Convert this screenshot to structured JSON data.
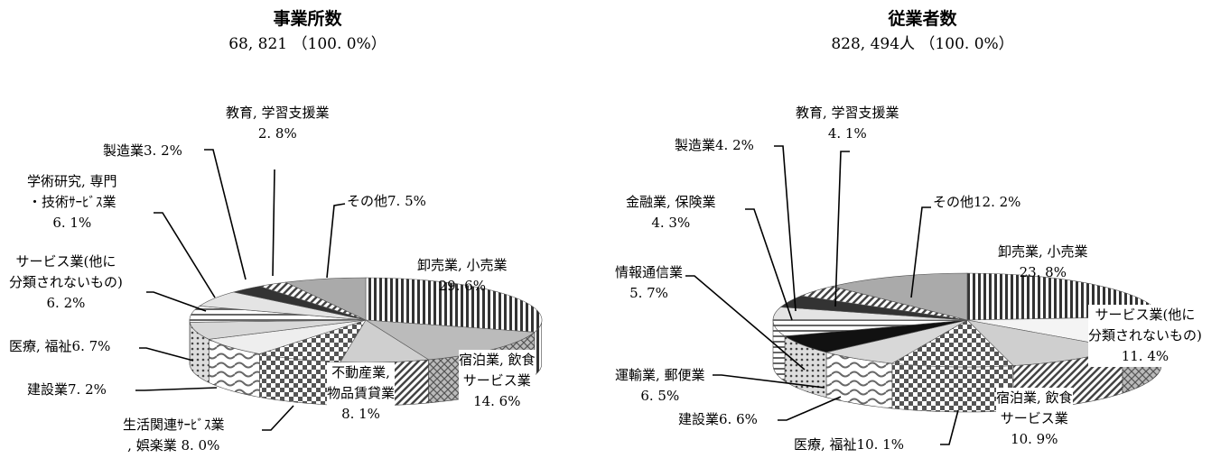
{
  "chart_data": [
    {
      "type": "pie",
      "title": "事業所数",
      "subtitle": "68, 821 （100. 0%）",
      "slices": [
        {
          "name": "卸売業, 小売業",
          "value": 29.6,
          "label": "29. 6%"
        },
        {
          "name": "宿泊業, 飲食サービス業",
          "value": 14.6,
          "label": "14. 6%"
        },
        {
          "name": "不動産業, 物品賃貸業",
          "value": 8.1,
          "label": "8. 1%"
        },
        {
          "name": "生活関連ｻｰﾋﾞｽ業, 娯楽業",
          "value": 8.0,
          "label": "8. 0%"
        },
        {
          "name": "建設業",
          "value": 7.2,
          "label": "7. 2%"
        },
        {
          "name": "医療, 福祉",
          "value": 6.7,
          "label": "6. 7%"
        },
        {
          "name": "サービス業(他に分類されないもの)",
          "value": 6.2,
          "label": "6. 2%"
        },
        {
          "name": "学術研究, 専門・技術ｻｰﾋﾞｽ業",
          "value": 6.1,
          "label": "6. 1%"
        },
        {
          "name": "製造業",
          "value": 3.2,
          "label": "3. 2%"
        },
        {
          "name": "教育, 学習支援業",
          "value": 2.8,
          "label": "2. 8%"
        },
        {
          "name": "その他",
          "value": 7.5,
          "label": "7. 5%"
        }
      ]
    },
    {
      "type": "pie",
      "title": "従業者数",
      "subtitle": "828, 494人 （100. 0%）",
      "slices": [
        {
          "name": "卸売業, 小売業",
          "value": 23.8,
          "label": "23. 8%"
        },
        {
          "name": "サービス業(他に分類されないもの)",
          "value": 11.4,
          "label": "11. 4%"
        },
        {
          "name": "宿泊業, 飲食サービス業",
          "value": 10.9,
          "label": "10. 9%"
        },
        {
          "name": "医療, 福祉",
          "value": 10.1,
          "label": "10. 1%"
        },
        {
          "name": "建設業",
          "value": 6.6,
          "label": "6. 6%"
        },
        {
          "name": "運輸業, 郵便業",
          "value": 6.5,
          "label": "6. 5%"
        },
        {
          "name": "情報通信業",
          "value": 5.7,
          "label": "5. 7%"
        },
        {
          "name": "金融業, 保険業",
          "value": 4.3,
          "label": "4. 3%"
        },
        {
          "name": "製造業",
          "value": 4.2,
          "label": "4. 2%"
        },
        {
          "name": "教育, 学習支援業",
          "value": 4.1,
          "label": "4. 1%"
        },
        {
          "name": "その他",
          "value": 12.2,
          "label": "12. 2%"
        }
      ]
    }
  ],
  "labels": {
    "left": {
      "wholesale": [
        "卸売業, 小売業",
        "29. 6%"
      ],
      "lodging": [
        "宿泊業, 飲食",
        "サービス業",
        "14. 6%"
      ],
      "realestate": [
        "不動産業,",
        "物品賃貸業",
        "8. 1%"
      ],
      "living": [
        "生活関連ｻｰﾋﾞｽ業",
        ", 娯楽業  8. 0%"
      ],
      "construction": [
        "建設業7. 2%"
      ],
      "medical": [
        "医療, 福祉6. 7%"
      ],
      "service": [
        "サービス業(他に",
        "分類されないもの)",
        "6. 2%"
      ],
      "academic": [
        "学術研究, 専門",
        "・技術ｻｰﾋﾞｽ業",
        "6. 1%"
      ],
      "manufacturing": [
        "製造業3. 2%"
      ],
      "education": [
        "教育, 学習支援業",
        "2. 8%"
      ],
      "other": [
        "その他7. 5%"
      ]
    },
    "right": {
      "wholesale": [
        "卸売業, 小売業",
        "23. 8%"
      ],
      "service": [
        "サービス業(他に",
        "分類されないもの)",
        "11. 4%"
      ],
      "lodging": [
        "宿泊業, 飲食",
        "サービス業",
        "10. 9%"
      ],
      "medical": [
        "医療, 福祉10. 1%"
      ],
      "construction": [
        "建設業6. 6%"
      ],
      "transport": [
        "運輸業, 郵便業",
        "6. 5%"
      ],
      "info": [
        "情報通信業",
        "5. 7%"
      ],
      "finance": [
        "金融業, 保険業",
        "4. 3%"
      ],
      "manufacturing": [
        "製造業4. 2%"
      ],
      "education": [
        "教育, 学習支援業",
        "4. 1%"
      ],
      "other": [
        "その他12. 2%"
      ]
    }
  }
}
